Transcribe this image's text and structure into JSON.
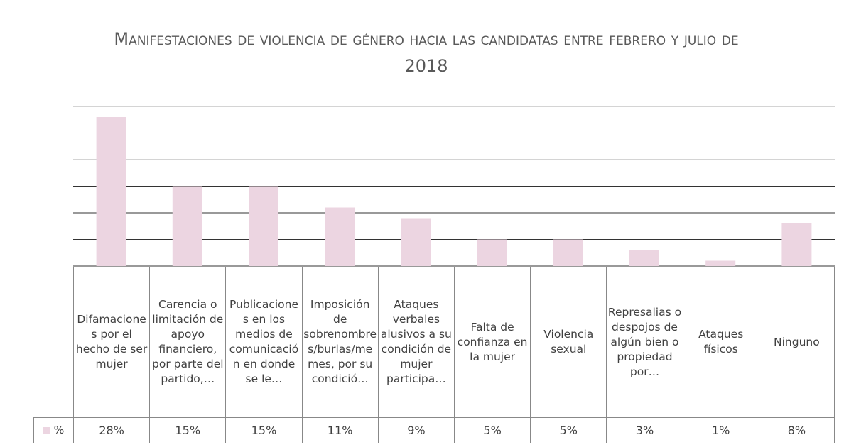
{
  "chart_data": {
    "type": "bar",
    "title": "Manifestaciones de violencia de género hacia las candidatas entre febrero y julio de 2018",
    "categories": [
      "Difamaciones por el hecho de ser mujer",
      "Carencia o limitación de apoyo financiero, por parte del partido,…",
      "Publicaciones en los medios de comunicación en donde se le…",
      "Imposición de sobrenombres/burlas/memes, por su condició…",
      "Ataques verbales alusivos a su condición de mujer participa…",
      "Falta de confianza en la mujer",
      "Violencia sexual",
      "Represalias o despojos de algún bien o propiedad por…",
      "Ataques físicos",
      "Ninguno"
    ],
    "series": [
      {
        "name": "%",
        "color": "#ecd5e1",
        "values": [
          28,
          15,
          15,
          11,
          9,
          5,
          5,
          3,
          1,
          8
        ],
        "value_labels": [
          "28%",
          "15%",
          "15%",
          "11%",
          "9%",
          "5%",
          "5%",
          "3%",
          "1%",
          "8%"
        ]
      }
    ],
    "ylim": [
      0,
      30
    ],
    "yticks": [
      0,
      5,
      10,
      15,
      20,
      25,
      30
    ],
    "grid": true
  }
}
